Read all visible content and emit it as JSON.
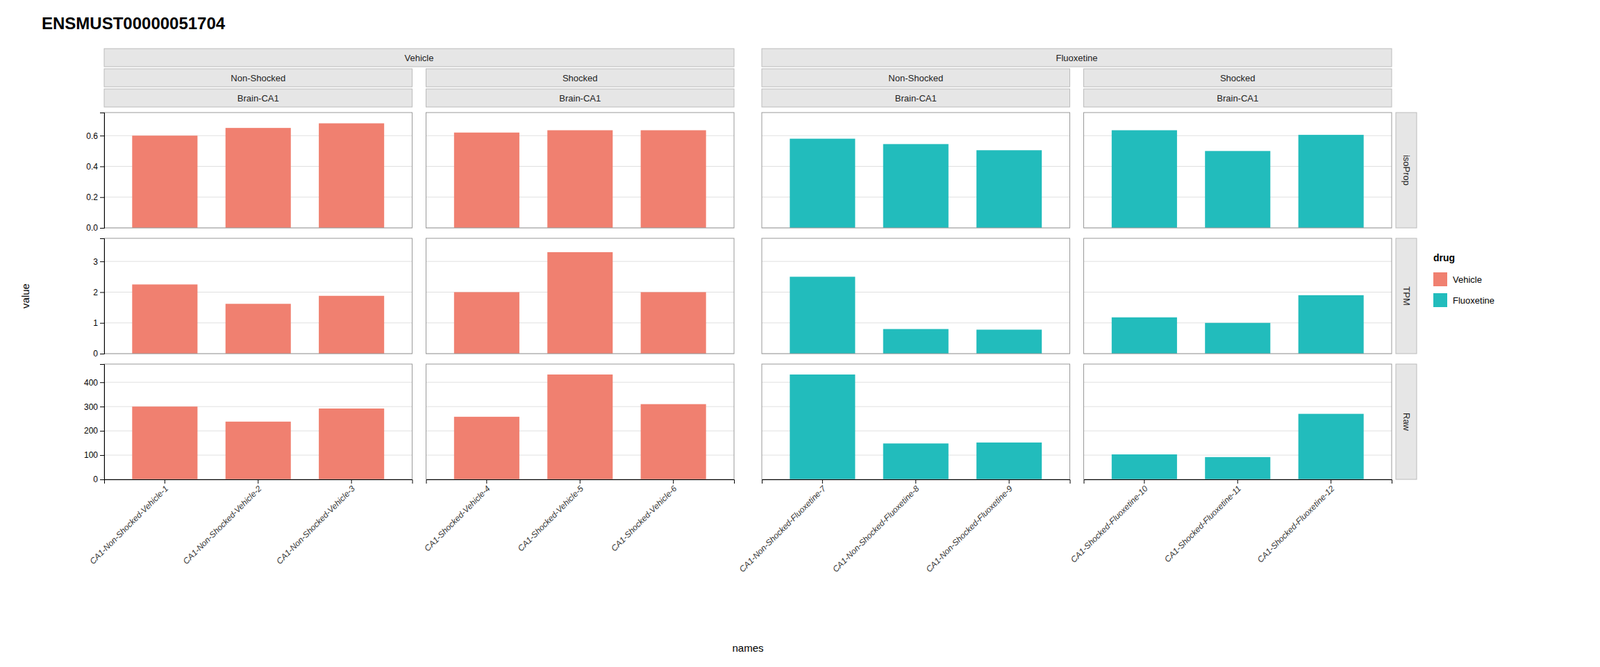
{
  "chart_data": {
    "type": "bar",
    "title": "ENSMUST00000051704",
    "x_label": "names",
    "y_label": "value",
    "legend_title": "drug",
    "legend": "right",
    "grid": true,
    "series": [
      {
        "name": "Vehicle",
        "color": "#F08070",
        "panels": [
          {
            "labels": [
              "Non-Shocked",
              "Brain-CA1"
            ],
            "categories": [
              "CA1-Non-Shocked-Vehicle-1",
              "CA1-Non-Shocked-Vehicle-2",
              "CA1-Non-Shocked-Vehicle-3"
            ]
          },
          {
            "labels": [
              "Shocked",
              "Brain-CA1"
            ],
            "categories": [
              "CA1-Shocked-Vehicle-4",
              "CA1-Shocked-Vehicle-5",
              "CA1-Shocked-Vehicle-6"
            ]
          }
        ]
      },
      {
        "name": "Fluoxetine",
        "color": "#22BCBC",
        "panels": [
          {
            "labels": [
              "Non-Shocked",
              "Brain-CA1"
            ],
            "categories": [
              "CA1-Non-Shocked-Fluoxetine-7",
              "CA1-Non-Shocked-Fluoxetine-8",
              "CA1-Non-Shocked-Fluoxetine-9"
            ]
          },
          {
            "labels": [
              "Shocked",
              "Brain-CA1"
            ],
            "categories": [
              "CA1-Shocked-Fluoxetine-10",
              "CA1-Shocked-Fluoxetine-11",
              "CA1-Shocked-Fluoxetine-12"
            ]
          }
        ]
      }
    ],
    "rows": [
      {
        "name": "isoProp",
        "ylim": [
          0.0,
          0.75
        ],
        "yticks": [
          {
            "value": 0,
            "label": "0.0"
          },
          0.2,
          0.4,
          0.6
        ],
        "values": [
          [
            0.6,
            0.65,
            0.68
          ],
          [
            0.62,
            0.635,
            0.635
          ],
          [
            0.58,
            0.545,
            0.505
          ],
          [
            0.635,
            0.5,
            0.605
          ]
        ]
      },
      {
        "name": "TPM",
        "ylim": [
          0.0,
          3.75
        ],
        "yticks": [
          0,
          1,
          2,
          3
        ],
        "values": [
          [
            2.25,
            1.62,
            1.88
          ],
          [
            2.0,
            3.3,
            2.0
          ],
          [
            2.5,
            0.8,
            0.78
          ],
          [
            1.18,
            1.0,
            1.9
          ]
        ]
      },
      {
        "name": "Raw",
        "ylim": [
          0.0,
          475
        ],
        "yticks": [
          0,
          100,
          200,
          300,
          400
        ],
        "values": [
          [
            300,
            238,
            292
          ],
          [
            258,
            432,
            310
          ],
          [
            432,
            148,
            152
          ],
          [
            103,
            92,
            270
          ]
        ]
      }
    ]
  }
}
